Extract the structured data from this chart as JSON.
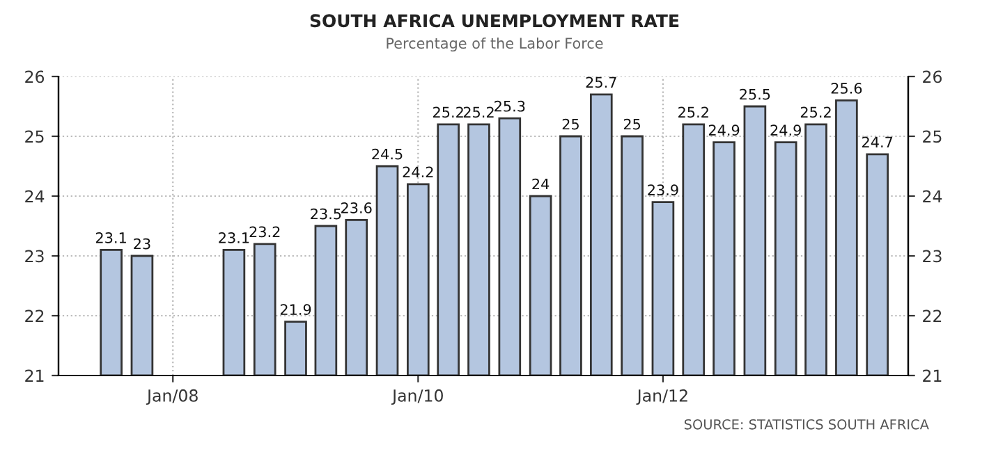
{
  "chart_data": {
    "type": "bar",
    "title": "SOUTH AFRICA UNEMPLOYMENT RATE",
    "subtitle": "Percentage of the Labor Force",
    "x": [
      "2007-07",
      "2007-10",
      "2008-07",
      "2008-10",
      "2009-01",
      "2009-04",
      "2009-07",
      "2009-10",
      "2010-01",
      "2010-04",
      "2010-07",
      "2010-10",
      "2011-01",
      "2011-04",
      "2011-07",
      "2011-10",
      "2012-01",
      "2012-04",
      "2012-07",
      "2012-10",
      "2013-01",
      "2013-04",
      "2013-07",
      "2013-10"
    ],
    "values": [
      23.1,
      23,
      23.1,
      23.2,
      21.9,
      23.5,
      23.6,
      24.5,
      24.2,
      25.2,
      25.2,
      25.3,
      24,
      25,
      25.7,
      25,
      23.9,
      25.2,
      24.9,
      25.5,
      24.9,
      25.2,
      25.6,
      24.7
    ],
    "color": "#b4c6e0",
    "data_labels": true,
    "xlim": [
      "2007-01-25",
      "2014-01-01"
    ],
    "xticks": [
      {
        "value": "2008-01",
        "label": "Jan/08"
      },
      {
        "value": "2010-01",
        "label": "Jan/10"
      },
      {
        "value": "2012-01",
        "label": "Jan/12"
      }
    ],
    "ylim": [
      21,
      26
    ],
    "yticks": [
      21,
      22,
      23,
      24,
      25,
      26
    ],
    "y2lim": [
      21,
      26
    ],
    "y2ticks": [
      21,
      22,
      23,
      24,
      25,
      26
    ],
    "grid": true,
    "legend": false,
    "annotations": [
      "SOURCE: STATISTICS SOUTH AFRICA"
    ]
  }
}
